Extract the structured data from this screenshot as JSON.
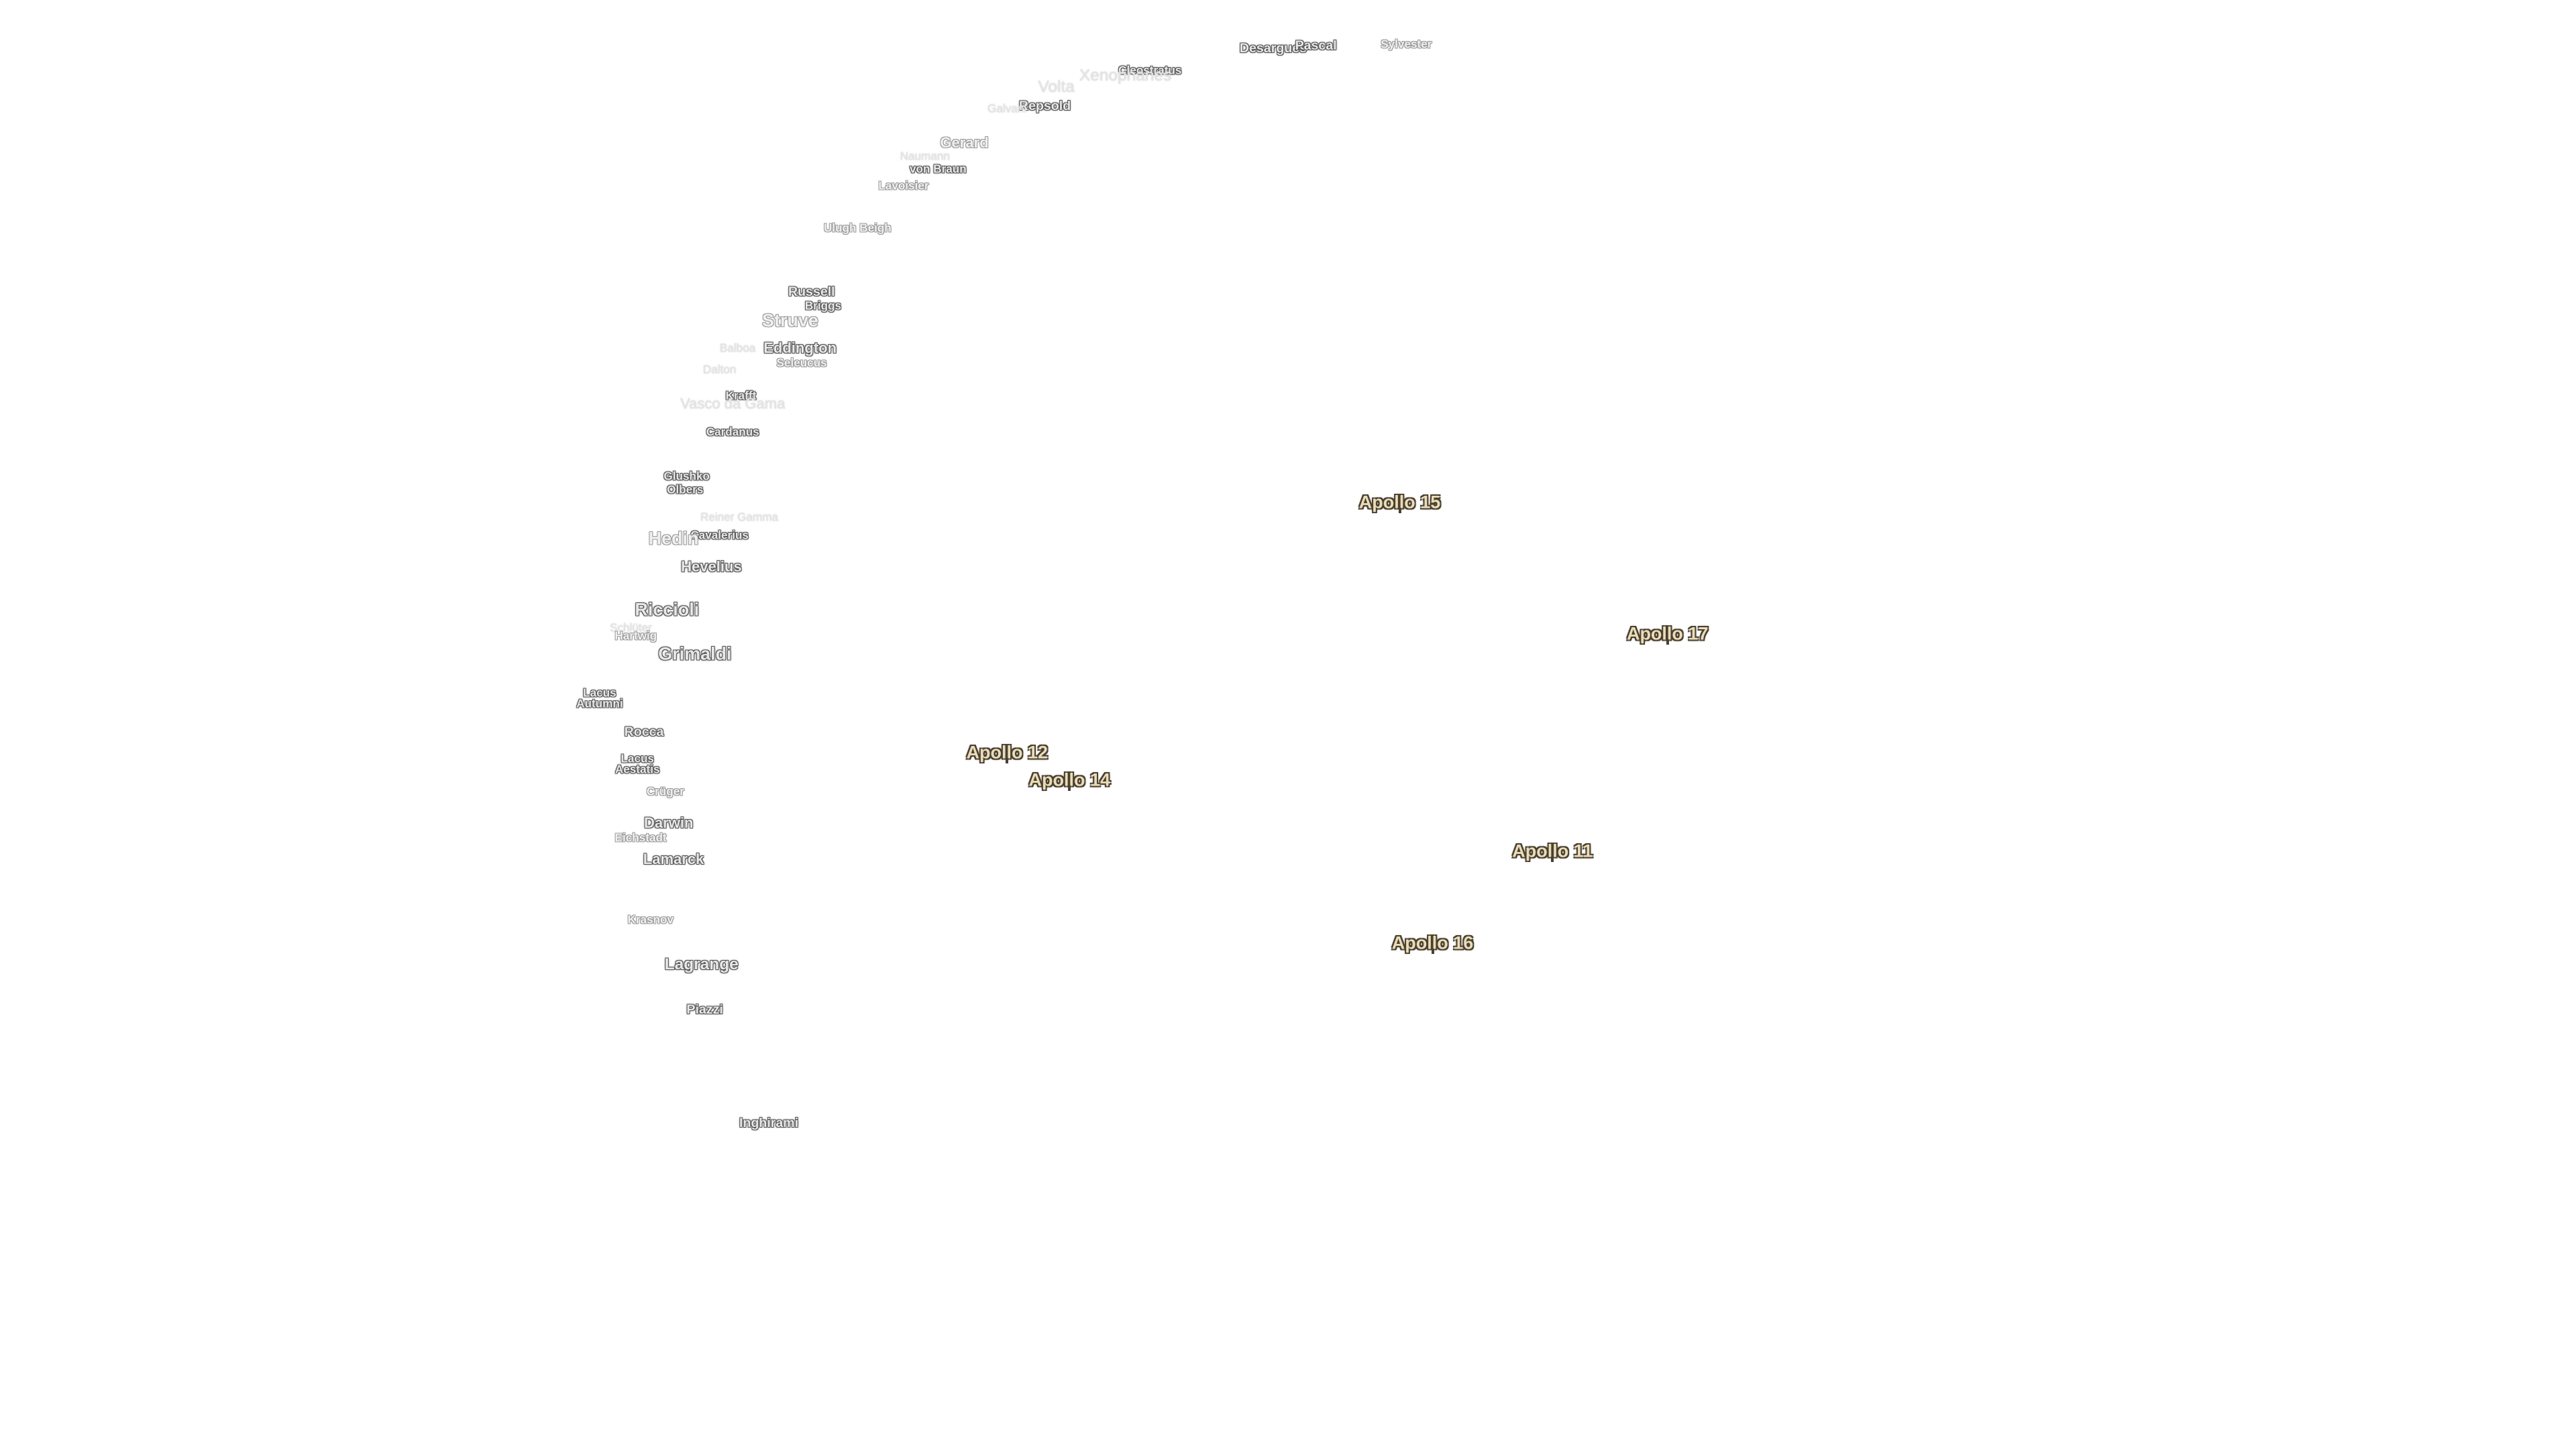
{
  "labels": [
    "Desargues",
    "Pascal",
    "Sylvester",
    "Cleostratus",
    "Xenophanes",
    "Volta",
    "Repsold",
    "Galvani",
    "Gerard",
    "Naumann",
    "von Braun",
    "Lavoisier",
    "Ulugh Beigh",
    "Russell",
    "Briggs",
    "Struve",
    "Eddington",
    "Balboa",
    "Seleucus",
    "Dalton",
    "Krafft",
    "Vasco da Gama",
    "Cardanus",
    "Glushko",
    "Olbers",
    "Reiner Gamma",
    "Cavalerius",
    "Hedin",
    "Hevelius",
    "Riccioli",
    "Schlüter",
    "Hartwig",
    "Grimaldi",
    "Lacus Autumni",
    "Rocca",
    "Lacus Aestatis",
    "Crüger",
    "Darwin",
    "Eichstadt",
    "Lamarck",
    "Krasnov",
    "Lagrange",
    "Piazzi",
    "Inghirami"
  ],
  "landing_sites": [
    "Apollo 15",
    "Apollo 17",
    "Apollo 12",
    "Apollo 14",
    "Apollo 11",
    "Apollo 16"
  ]
}
